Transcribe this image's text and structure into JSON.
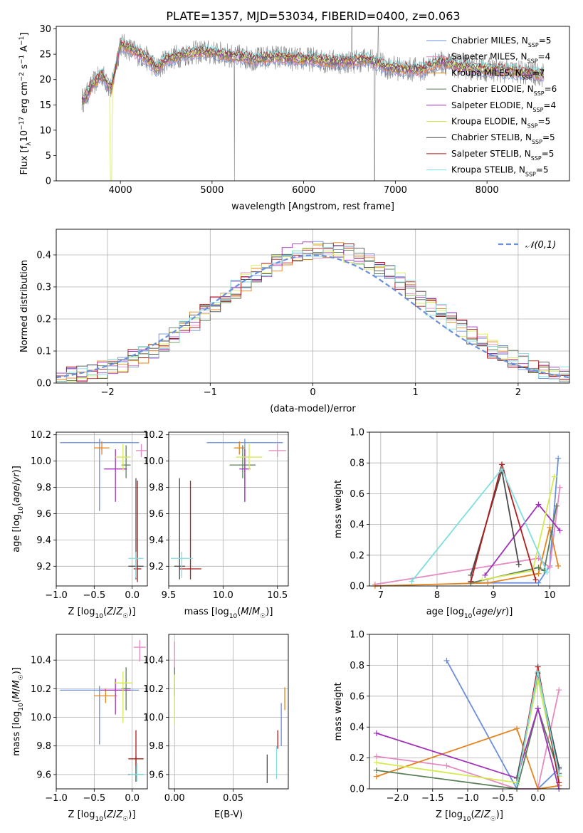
{
  "title": "PLATE=1357, MJD=53034, FIBERID=0400, z=0.063",
  "colors": {
    "Chabrier MILES": "#6a8fdc",
    "Salpeter MILES": "#e58ac2",
    "Kroupa MILES": "#e4841f",
    "Chabrier ELODIE": "#5a7f5a",
    "Salpeter ELODIE": "#a033b8",
    "Kroupa ELODIE": "#d4ea4f",
    "Chabrier STELIB": "#4c4c4c",
    "Salpeter STELIB": "#b01c1c",
    "Kroupa STELIB": "#7fdede"
  },
  "chart_data": [
    {
      "type": "line",
      "id": "spectrum",
      "xlabel": "wavelength [Angstrom, rest frame]",
      "ylabel": "Flux [f_λ10^-17 erg cm^-2 s^-1 A^-1]",
      "xlim": [
        3300,
        8900
      ],
      "ylim": [
        0,
        30.5
      ],
      "xticks": [
        "4000",
        "5000",
        "6000",
        "7000",
        "8000"
      ],
      "yticks": [
        "0",
        "5",
        "10",
        "15",
        "20",
        "25",
        "30"
      ],
      "grid": false,
      "legend_position": "top-right",
      "data_color": "#808080",
      "spectrum_nodes": {
        "x": [
          3600,
          3700,
          3800,
          3900,
          4000,
          4100,
          4200,
          4300,
          4400,
          4500,
          4700,
          4900,
          5100,
          5300,
          5500,
          5700,
          5900,
          6100,
          6300,
          6500,
          6700,
          6900,
          7100,
          7300,
          7500,
          7700,
          8000,
          8300,
          8600
        ],
        "y": [
          16,
          19,
          21,
          18,
          27,
          26,
          25,
          24,
          22,
          24,
          25,
          25.5,
          25,
          24.5,
          24,
          24.5,
          24,
          24,
          23.5,
          23.5,
          24,
          22.5,
          22,
          22,
          23.5,
          22.5,
          22,
          21.5,
          21
        ]
      },
      "legend": [
        {
          "name": "Chabrier MILES",
          "nssp": "5"
        },
        {
          "name": "Salpeter MILES",
          "nssp": "4"
        },
        {
          "name": "Kroupa MILES",
          "nssp": "7"
        },
        {
          "name": "Chabrier ELODIE",
          "nssp": "6"
        },
        {
          "name": "Salpeter ELODIE",
          "nssp": "4"
        },
        {
          "name": "Kroupa ELODIE",
          "nssp": "5"
        },
        {
          "name": "Chabrier STELIB",
          "nssp": "5"
        },
        {
          "name": "Salpeter STELIB",
          "nssp": "5"
        },
        {
          "name": "Kroupa STELIB",
          "nssp": "5"
        }
      ]
    },
    {
      "type": "histogram",
      "id": "residuals",
      "xlabel": "(data-model)/error",
      "ylabel": "Normed distribution",
      "xlim": [
        -2.5,
        2.5
      ],
      "ylim": [
        0,
        0.48
      ],
      "xticks": [
        "−2",
        "−1",
        "0",
        "1",
        "2"
      ],
      "yticks": [
        "0.0",
        "0.1",
        "0.2",
        "0.3",
        "0.4"
      ],
      "grid": true,
      "legend": "𝒩(0,1)",
      "legend_position": "top-right",
      "bin_width": 0.1,
      "bin_start": -2.5,
      "gaussian_mean": 0,
      "gaussian_sigma": 1
    },
    {
      "type": "errorbar",
      "id": "age_vs_Z",
      "xlabel": "Z [log10(Z/Z☉)]",
      "ylabel": "age [log10(age/yr)]",
      "xlim": [
        -1.0,
        0.2
      ],
      "ylim": [
        9.05,
        10.22
      ],
      "xticks": [
        "−1.0",
        "−0.5",
        "0.0"
      ],
      "yticks": [
        "9.2",
        "9.4",
        "9.6",
        "9.8",
        "10.0",
        "10.2"
      ],
      "grid": true,
      "points": [
        {
          "model": "Chabrier MILES",
          "x": -0.43,
          "xerr": 0.52,
          "y": 10.14,
          "yerr_lo": 0.52,
          "yerr_hi": 0.03
        },
        {
          "model": "Salpeter MILES",
          "x": 0.12,
          "xerr": 0.07,
          "y": 10.08,
          "yerr_lo": 0.05,
          "yerr_hi": 0.05
        },
        {
          "model": "Kroupa MILES",
          "x": -0.4,
          "xerr": 0.1,
          "y": 10.1,
          "yerr_lo": 0.05,
          "yerr_hi": 0.05
        },
        {
          "model": "Chabrier ELODIE",
          "x": -0.08,
          "xerr": 0.06,
          "y": 9.97,
          "yerr_lo": 0.1,
          "yerr_hi": 0.15
        },
        {
          "model": "Salpeter ELODIE",
          "x": -0.22,
          "xerr": 0.15,
          "y": 9.94,
          "yerr_lo": 0.25,
          "yerr_hi": 0.15
        },
        {
          "model": "Kroupa ELODIE",
          "x": -0.12,
          "xerr": 0.1,
          "y": 10.03,
          "yerr_lo": 0.1,
          "yerr_hi": 0.1
        },
        {
          "model": "Chabrier STELIB",
          "x": 0.05,
          "xerr": 0.1,
          "y": 9.2,
          "yerr_lo": 0.1,
          "yerr_hi": 0.67
        },
        {
          "model": "Salpeter STELIB",
          "x": 0.07,
          "xerr": 0.05,
          "y": 9.18,
          "yerr_lo": 0.1,
          "yerr_hi": 0.67
        },
        {
          "model": "Kroupa STELIB",
          "x": 0.05,
          "xerr": 0.1,
          "y": 9.26,
          "yerr_lo": 0.15,
          "yerr_hi": 0.05
        }
      ]
    },
    {
      "type": "errorbar",
      "id": "age_vs_mass",
      "xlabel": "mass [log10(M/M☉)]",
      "ylabel": "",
      "xlim": [
        9.5,
        10.6
      ],
      "ylim": [
        9.05,
        10.22
      ],
      "xticks": [
        "9.5",
        "10.0",
        "10.5"
      ],
      "yticks": [
        "9.2",
        "9.4",
        "9.6",
        "9.8",
        "10.0",
        "10.2"
      ],
      "grid": true,
      "points": [
        {
          "model": "Chabrier MILES",
          "x": 10.2,
          "xerr": 0.35,
          "y": 10.14,
          "yerr_lo": 0.45,
          "yerr_hi": 0.03
        },
        {
          "model": "Salpeter MILES",
          "x": 10.5,
          "xerr": 0.08,
          "y": 10.08,
          "yerr_lo": 0.05,
          "yerr_hi": 0.05
        },
        {
          "model": "Kroupa MILES",
          "x": 10.15,
          "xerr": 0.05,
          "y": 10.1,
          "yerr_lo": 0.05,
          "yerr_hi": 0.05
        },
        {
          "model": "Chabrier ELODIE",
          "x": 10.18,
          "xerr": 0.12,
          "y": 9.97,
          "yerr_lo": 0.1,
          "yerr_hi": 0.15
        },
        {
          "model": "Salpeter ELODIE",
          "x": 10.2,
          "xerr": 0.05,
          "y": 9.94,
          "yerr_lo": 0.25,
          "yerr_hi": 0.15
        },
        {
          "model": "Kroupa ELODIE",
          "x": 10.24,
          "xerr": 0.12,
          "y": 10.03,
          "yerr_lo": 0.1,
          "yerr_hi": 0.1
        },
        {
          "model": "Chabrier STELIB",
          "x": 9.6,
          "xerr": 0.05,
          "y": 9.2,
          "yerr_lo": 0.1,
          "yerr_hi": 0.67
        },
        {
          "model": "Salpeter STELIB",
          "x": 9.7,
          "xerr": 0.1,
          "y": 9.18,
          "yerr_lo": 0.08,
          "yerr_hi": 0.67
        },
        {
          "model": "Kroupa STELIB",
          "x": 9.62,
          "xerr": 0.1,
          "y": 9.26,
          "yerr_lo": 0.15,
          "yerr_hi": 0.05
        }
      ]
    },
    {
      "type": "line",
      "id": "weight_vs_age",
      "xlabel": "age [log10(age/yr)]",
      "ylabel": "mass weight",
      "xlim": [
        6.8,
        10.35
      ],
      "ylim": [
        0,
        1.0
      ],
      "xticks": [
        "7",
        "8",
        "9",
        "10"
      ],
      "yticks": [
        "0.0",
        "0.2",
        "0.4",
        "0.6",
        "0.8",
        "1.0"
      ],
      "grid": true,
      "series": [
        {
          "model": "Chabrier MILES",
          "x": [
            8.6,
            9.8,
            10.0,
            10.15
          ],
          "y": [
            0.02,
            0.02,
            0.13,
            0.83
          ]
        },
        {
          "model": "Salpeter MILES",
          "x": [
            6.9,
            9.8,
            10.0,
            10.18
          ],
          "y": [
            0.01,
            0.18,
            0.12,
            0.64
          ]
        },
        {
          "model": "Kroupa MILES",
          "x": [
            6.9,
            8.9,
            9.8,
            10.0,
            10.15
          ],
          "y": [
            0.0,
            0.02,
            0.08,
            0.38,
            0.13
          ]
        },
        {
          "model": "Chabrier ELODIE",
          "x": [
            8.6,
            9.8,
            9.9,
            10.12
          ],
          "y": [
            0.02,
            0.12,
            0.1,
            0.52
          ]
        },
        {
          "model": "Salpeter ELODIE",
          "x": [
            8.85,
            9.8,
            10.18
          ],
          "y": [
            0.07,
            0.53,
            0.36
          ]
        },
        {
          "model": "Kroupa ELODIE",
          "x": [
            8.8,
            9.7,
            10.08
          ],
          "y": [
            0.04,
            0.1,
            0.71
          ]
        },
        {
          "model": "Chabrier STELIB",
          "x": [
            8.6,
            9.15,
            9.45
          ],
          "y": [
            0.07,
            0.75,
            0.14
          ]
        },
        {
          "model": "Salpeter STELIB",
          "x": [
            8.6,
            9.15,
            9.75
          ],
          "y": [
            0.03,
            0.79,
            0.04
          ]
        },
        {
          "model": "Kroupa STELIB",
          "x": [
            7.55,
            9.15,
            9.95
          ],
          "y": [
            0.03,
            0.76,
            0.09
          ]
        }
      ]
    },
    {
      "type": "errorbar",
      "id": "mass_vs_Z",
      "xlabel": "Z [log10(Z/Z☉)]",
      "ylabel": "mass [log10(M/M☉)]",
      "xlim": [
        -1.0,
        0.2
      ],
      "ylim": [
        9.5,
        10.58
      ],
      "xticks": [
        "−1.0",
        "−0.5",
        "0.0"
      ],
      "yticks": [
        "9.6",
        "9.8",
        "10.0",
        "10.2",
        "10.4"
      ],
      "grid": true,
      "points": [
        {
          "model": "Chabrier MILES",
          "x": -0.43,
          "xerr": 0.52,
          "y": 10.19,
          "yerr_lo": 0.38,
          "yerr_hi": 0.03
        },
        {
          "model": "Salpeter MILES",
          "x": 0.1,
          "xerr": 0.08,
          "y": 10.49,
          "yerr_lo": 0.1,
          "yerr_hi": 0.05
        },
        {
          "model": "Kroupa MILES",
          "x": -0.35,
          "xerr": 0.15,
          "y": 10.15,
          "yerr_lo": 0.05,
          "yerr_hi": 0.05
        },
        {
          "model": "Chabrier ELODIE",
          "x": -0.08,
          "xerr": 0.06,
          "y": 10.2,
          "yerr_lo": 0.15,
          "yerr_hi": 0.15
        },
        {
          "model": "Salpeter ELODIE",
          "x": -0.22,
          "xerr": 0.2,
          "y": 10.19,
          "yerr_lo": 0.17,
          "yerr_hi": 0.08
        },
        {
          "model": "Kroupa ELODIE",
          "x": -0.12,
          "xerr": 0.12,
          "y": 10.24,
          "yerr_lo": 0.28,
          "yerr_hi": 0.08
        },
        {
          "model": "Chabrier STELIB",
          "x": 0.05,
          "xerr": 0.1,
          "y": 9.6,
          "yerr_lo": 0.05,
          "yerr_hi": 0.13
        },
        {
          "model": "Salpeter STELIB",
          "x": 0.05,
          "xerr": 0.1,
          "y": 9.71,
          "yerr_lo": 0.05,
          "yerr_hi": 0.2
        },
        {
          "model": "Kroupa STELIB",
          "x": 0.06,
          "xerr": 0.1,
          "y": 9.6,
          "yerr_lo": 0.05,
          "yerr_hi": 0.08
        }
      ]
    },
    {
      "type": "errorbar",
      "id": "mass_vs_ebv",
      "xlabel": "E(B-V)",
      "ylabel": "",
      "xlim": [
        -0.005,
        0.097
      ],
      "ylim": [
        9.5,
        10.58
      ],
      "xticks": [
        "0.00",
        "0.05"
      ],
      "yticks": [
        "9.6",
        "9.8",
        "10.0",
        "10.2",
        "10.4"
      ],
      "grid": true,
      "points": [
        {
          "model": "Chabrier MILES",
          "x": 0.091,
          "xerr": 0,
          "y": 9.85,
          "yerr_lo": 0.05,
          "yerr_hi": 0.25
        },
        {
          "model": "Salpeter MILES",
          "x": 0.0,
          "xerr": 0,
          "y": 10.45,
          "yerr_lo": 0.1,
          "yerr_hi": 0.08
        },
        {
          "model": "Kroupa MILES",
          "x": 0.094,
          "xerr": 0,
          "y": 10.15,
          "yerr_lo": 0.1,
          "yerr_hi": 0.06
        },
        {
          "model": "Chabrier ELODIE",
          "x": 0.0,
          "xerr": 0,
          "y": 10.25,
          "yerr_lo": 0.1,
          "yerr_hi": 0.1
        },
        {
          "model": "Salpeter ELODIE",
          "x": 0.0,
          "xerr": 0,
          "y": 10.2,
          "yerr_lo": 0.05,
          "yerr_hi": 0.05
        },
        {
          "model": "Kroupa ELODIE",
          "x": 0.0,
          "xerr": 0,
          "y": 10.15,
          "yerr_lo": 0.2,
          "yerr_hi": 0.15
        },
        {
          "model": "Chabrier STELIB",
          "x": 0.079,
          "xerr": 0,
          "y": 9.64,
          "yerr_lo": 0.1,
          "yerr_hi": 0.1
        },
        {
          "model": "Salpeter STELIB",
          "x": 0.088,
          "xerr": 0,
          "y": 9.83,
          "yerr_lo": 0.05,
          "yerr_hi": 0.08
        },
        {
          "model": "Kroupa STELIB",
          "x": 0.087,
          "xerr": 0,
          "y": 9.72,
          "yerr_lo": 0.15,
          "yerr_hi": 0.08
        }
      ]
    },
    {
      "type": "line",
      "id": "weight_vs_Z",
      "xlabel": "Z [log10(Z/Z☉)]",
      "ylabel": "mass weight",
      "xlim": [
        -2.4,
        0.45
      ],
      "ylim": [
        0,
        1.0
      ],
      "xticks": [
        "−2.0",
        "−1.5",
        "−1.0",
        "−0.5",
        "0.0"
      ],
      "yticks": [
        "0.0",
        "0.2",
        "0.4",
        "0.6",
        "0.8",
        "1.0"
      ],
      "grid": true,
      "series": [
        {
          "model": "Chabrier MILES",
          "x": [
            -1.3,
            -0.3,
            0.0,
            0.3
          ],
          "y": [
            0.83,
            0.0,
            0.0,
            0.13
          ]
        },
        {
          "model": "Salpeter MILES",
          "x": [
            -2.3,
            -1.3,
            -0.3,
            0.0,
            0.3
          ],
          "y": [
            0.21,
            0.15,
            0.0,
            0.0,
            0.64
          ]
        },
        {
          "model": "Kroupa MILES",
          "x": [
            -2.3,
            -0.3,
            0.0,
            0.3
          ],
          "y": [
            0.08,
            0.39,
            0.0,
            0.02
          ]
        },
        {
          "model": "Chabrier ELODIE",
          "x": [
            -2.3,
            -0.3,
            0.0,
            0.3
          ],
          "y": [
            0.12,
            0.0,
            0.52,
            0.1
          ]
        },
        {
          "model": "Salpeter ELODIE",
          "x": [
            -2.3,
            -0.3,
            0.0,
            0.3
          ],
          "y": [
            0.36,
            0.07,
            0.52,
            0.0
          ]
        },
        {
          "model": "Kroupa ELODIE",
          "x": [
            -2.3,
            -0.3,
            0.0,
            0.3
          ],
          "y": [
            0.17,
            0.04,
            0.71,
            0.08
          ]
        },
        {
          "model": "Chabrier STELIB",
          "x": [
            -0.3,
            0.0,
            0.3
          ],
          "y": [
            0.07,
            0.75,
            0.14
          ]
        },
        {
          "model": "Salpeter STELIB",
          "x": [
            -0.3,
            0.0,
            0.3
          ],
          "y": [
            0.03,
            0.79,
            0.04
          ]
        },
        {
          "model": "Kroupa STELIB",
          "x": [
            -0.3,
            0.0,
            0.3
          ],
          "y": [
            0.03,
            0.76,
            0.09
          ]
        }
      ]
    }
  ]
}
